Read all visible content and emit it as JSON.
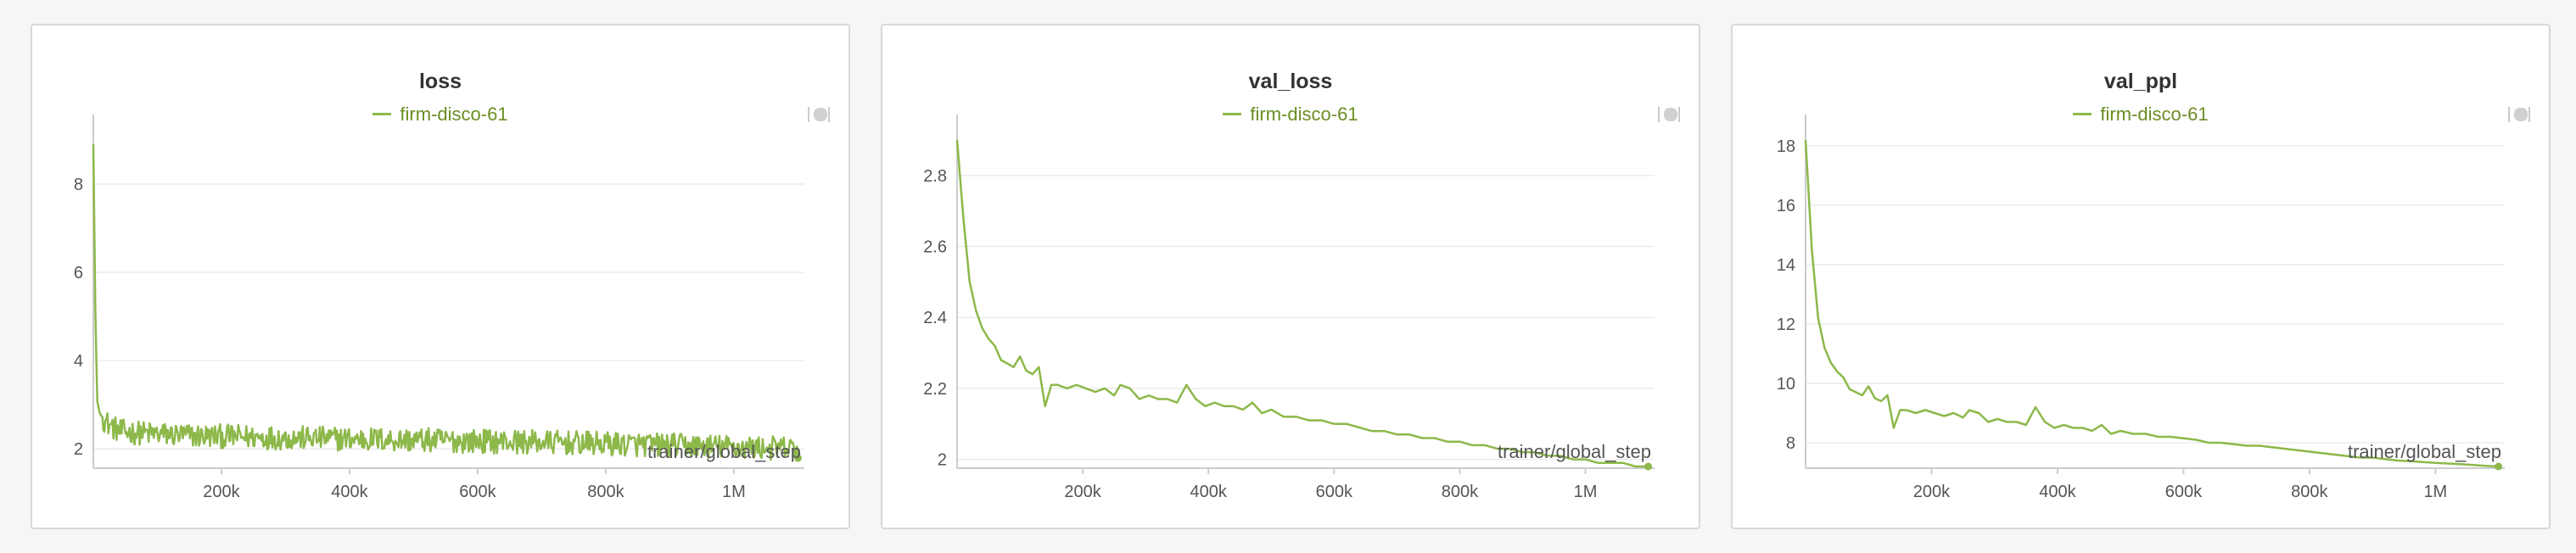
{
  "colors": {
    "series": "#8db84a",
    "legend_text": "#6b8e23",
    "grid": "#ececec",
    "axis": "#cccccc"
  },
  "panels": [
    {
      "title": "loss",
      "legend": "firm-disco-61",
      "icon": "panel-toggle-icon"
    },
    {
      "title": "val_loss",
      "legend": "firm-disco-61",
      "icon": "panel-toggle-icon"
    },
    {
      "title": "val_ppl",
      "legend": "firm-disco-61",
      "icon": "panel-toggle-icon"
    }
  ],
  "chart_data": [
    {
      "type": "line",
      "title": "loss",
      "xlabel": "trainer/global_step",
      "ylabel": "",
      "xlim": [
        0,
        1110000
      ],
      "ylim": [
        1.6,
        9.0
      ],
      "xticks": [
        200000,
        400000,
        600000,
        800000,
        1000000
      ],
      "xtick_labels": [
        "200k",
        "400k",
        "600k",
        "800k",
        "1M"
      ],
      "yticks": [
        2,
        4,
        6,
        8
      ],
      "ytick_labels": [
        "2",
        "4",
        "6",
        "8"
      ],
      "grid": true,
      "noisy": true,
      "series": [
        {
          "name": "firm-disco-61",
          "x": [
            0,
            3000,
            6000,
            10000,
            20000,
            40000,
            80000,
            150000,
            300000,
            500000,
            700000,
            900000,
            1100000
          ],
          "y": [
            8.9,
            5.2,
            3.1,
            2.8,
            2.6,
            2.4,
            2.35,
            2.3,
            2.25,
            2.2,
            2.15,
            2.08,
            2.0
          ]
        }
      ]
    },
    {
      "type": "line",
      "title": "val_loss",
      "xlabel": "trainer/global_step",
      "ylabel": "",
      "xlim": [
        0,
        1110000
      ],
      "ylim": [
        1.98,
        2.9
      ],
      "xticks": [
        200000,
        400000,
        600000,
        800000,
        1000000
      ],
      "xtick_labels": [
        "200k",
        "400k",
        "600k",
        "800k",
        "1M"
      ],
      "yticks": [
        2.0,
        2.2,
        2.4,
        2.6,
        2.8
      ],
      "ytick_labels": [
        "2",
        "2.2",
        "2.4",
        "2.6",
        "2.8"
      ],
      "grid": true,
      "noisy": false,
      "series": [
        {
          "name": "firm-disco-61",
          "x": [
            0,
            10000,
            20000,
            30000,
            40000,
            50000,
            60000,
            70000,
            80000,
            90000,
            100000,
            110000,
            120000,
            130000,
            140000,
            150000,
            160000,
            175000,
            190000,
            205000,
            220000,
            235000,
            250000,
            260000,
            275000,
            290000,
            305000,
            320000,
            335000,
            350000,
            365000,
            380000,
            395000,
            410000,
            425000,
            440000,
            455000,
            470000,
            485000,
            500000,
            520000,
            540000,
            560000,
            580000,
            600000,
            620000,
            640000,
            660000,
            680000,
            700000,
            720000,
            740000,
            760000,
            780000,
            800000,
            820000,
            840000,
            860000,
            880000,
            900000,
            920000,
            940000,
            960000,
            980000,
            1000000,
            1020000,
            1040000,
            1060000,
            1080000,
            1100000
          ],
          "y": [
            2.9,
            2.68,
            2.5,
            2.42,
            2.37,
            2.34,
            2.32,
            2.28,
            2.27,
            2.26,
            2.29,
            2.25,
            2.24,
            2.26,
            2.15,
            2.21,
            2.21,
            2.2,
            2.21,
            2.2,
            2.19,
            2.2,
            2.18,
            2.21,
            2.2,
            2.17,
            2.18,
            2.17,
            2.17,
            2.16,
            2.21,
            2.17,
            2.15,
            2.16,
            2.15,
            2.15,
            2.14,
            2.16,
            2.13,
            2.14,
            2.12,
            2.12,
            2.11,
            2.11,
            2.1,
            2.1,
            2.09,
            2.08,
            2.08,
            2.07,
            2.07,
            2.06,
            2.06,
            2.05,
            2.05,
            2.04,
            2.04,
            2.03,
            2.03,
            2.02,
            2.02,
            2.01,
            2.01,
            2.0,
            2.0,
            1.99,
            1.99,
            1.99,
            1.98,
            1.98
          ]
        }
      ]
    },
    {
      "type": "line",
      "title": "val_ppl",
      "xlabel": "trainer/global_step",
      "ylabel": "",
      "xlim": [
        0,
        1110000
      ],
      "ylim": [
        7.2,
        18.2
      ],
      "xticks": [
        200000,
        400000,
        600000,
        800000,
        1000000
      ],
      "xtick_labels": [
        "200k",
        "400k",
        "600k",
        "800k",
        "1M"
      ],
      "yticks": [
        8,
        10,
        12,
        14,
        16,
        18
      ],
      "ytick_labels": [
        "8",
        "10",
        "12",
        "14",
        "16",
        "18"
      ],
      "grid": true,
      "noisy": false,
      "series": [
        {
          "name": "firm-disco-61",
          "x": [
            0,
            10000,
            20000,
            30000,
            40000,
            50000,
            60000,
            70000,
            80000,
            90000,
            100000,
            110000,
            120000,
            130000,
            140000,
            150000,
            160000,
            175000,
            190000,
            205000,
            220000,
            235000,
            250000,
            260000,
            275000,
            290000,
            305000,
            320000,
            335000,
            350000,
            365000,
            380000,
            395000,
            410000,
            425000,
            440000,
            455000,
            470000,
            485000,
            500000,
            520000,
            540000,
            560000,
            580000,
            600000,
            620000,
            640000,
            660000,
            680000,
            700000,
            720000,
            740000,
            760000,
            780000,
            800000,
            820000,
            840000,
            860000,
            880000,
            900000,
            920000,
            940000,
            960000,
            980000,
            1000000,
            1020000,
            1040000,
            1060000,
            1080000,
            1100000
          ],
          "y": [
            18.2,
            14.5,
            12.2,
            11.2,
            10.7,
            10.4,
            10.2,
            9.8,
            9.7,
            9.6,
            9.9,
            9.5,
            9.4,
            9.6,
            8.5,
            9.1,
            9.1,
            9.0,
            9.1,
            9.0,
            8.9,
            9.0,
            8.85,
            9.1,
            9.0,
            8.7,
            8.8,
            8.7,
            8.7,
            8.6,
            9.2,
            8.7,
            8.5,
            8.6,
            8.5,
            8.5,
            8.4,
            8.6,
            8.3,
            8.4,
            8.3,
            8.3,
            8.2,
            8.2,
            8.15,
            8.1,
            8.0,
            8.0,
            7.95,
            7.9,
            7.9,
            7.85,
            7.8,
            7.75,
            7.7,
            7.65,
            7.6,
            7.55,
            7.5,
            7.5,
            7.45,
            7.4,
            7.38,
            7.35,
            7.32,
            7.3,
            7.28,
            7.25,
            7.22,
            7.2
          ]
        }
      ]
    }
  ]
}
